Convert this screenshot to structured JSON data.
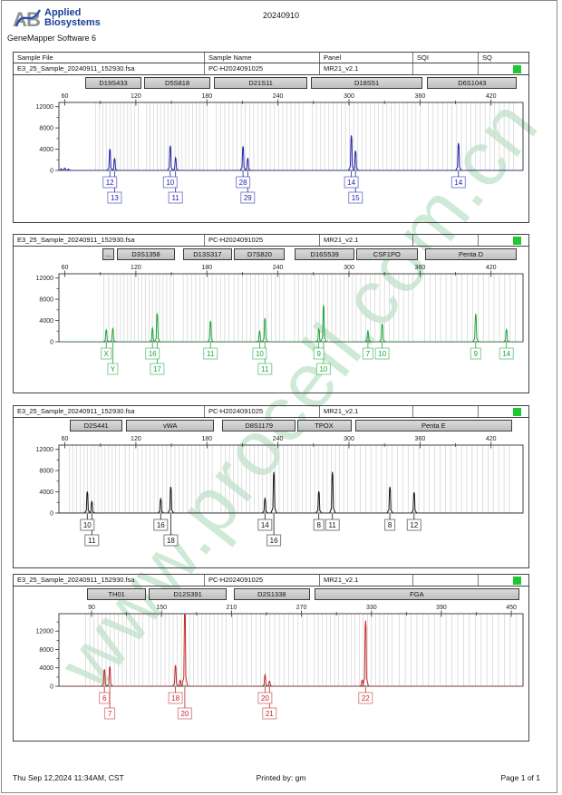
{
  "header": {
    "logo_a": "A",
    "logo_b": "B",
    "brand_line1": "Applied",
    "brand_line2": "Biosystems",
    "app_title": "GeneMapper Software 6",
    "date": "20240910"
  },
  "watermark": {
    "text": "www.procell.com.cn",
    "color": "#9ed7ae"
  },
  "table": {
    "columns": [
      "Sample File",
      "Sample Name",
      "Panel",
      "SQI",
      "SQ"
    ]
  },
  "sample": {
    "file": "E3_25_Sample_20240911_152930.fsa",
    "name": "PC-H2024091025",
    "panel": "MR21_v2.1",
    "sqi": "",
    "sq_color": "#1fc832"
  },
  "footer": {
    "timestamp": "Thu Sep 12,2024 11:34AM, CST",
    "printed_by": "Printed by: gm",
    "page": "Page 1 of 1"
  },
  "chart_data": [
    {
      "type": "electropherogram",
      "dye": "blue",
      "color": "#2323aa",
      "x_range": [
        55,
        447
      ],
      "x_ticks": [
        60,
        120,
        180,
        240,
        300,
        360,
        420
      ],
      "y_ticks": [
        0,
        4000,
        8000,
        12000
      ],
      "y_max": 12800,
      "markers": [
        {
          "name": "D19S433",
          "from": 77,
          "to": 125
        },
        {
          "name": "D5S818",
          "from": 127,
          "to": 183
        },
        {
          "name": "D21S11",
          "from": 186,
          "to": 265
        },
        {
          "name": "D18S51",
          "from": 268,
          "to": 362
        },
        {
          "name": "D6S1043",
          "from": 366,
          "to": 442
        }
      ],
      "bins": [
        [
          86,
          124,
          3
        ],
        [
          129,
          182,
          3
        ],
        [
          188,
          264,
          3.5
        ],
        [
          269,
          361,
          3.5
        ],
        [
          367,
          441,
          4
        ]
      ],
      "peaks": [
        [
          57,
          300
        ],
        [
          60,
          450
        ],
        [
          63,
          250
        ],
        [
          98,
          4050
        ],
        [
          102,
          2200
        ],
        [
          149,
          4650
        ],
        [
          153.5,
          2400
        ],
        [
          210.5,
          4550
        ],
        [
          214.5,
          2250
        ],
        [
          302,
          6600
        ],
        [
          305.5,
          3700
        ],
        [
          392.5,
          5150
        ]
      ],
      "alleles": [
        {
          "x": 98,
          "label": "12",
          "row": 1
        },
        {
          "x": 102,
          "label": "13",
          "row": 2
        },
        {
          "x": 149,
          "label": "10",
          "row": 1
        },
        {
          "x": 153.5,
          "label": "11",
          "row": 2
        },
        {
          "x": 210.5,
          "label": "28",
          "row": 1
        },
        {
          "x": 214.5,
          "label": "29",
          "row": 2
        },
        {
          "x": 302,
          "label": "14",
          "row": 1
        },
        {
          "x": 305.5,
          "label": "15",
          "row": 2
        },
        {
          "x": 392.5,
          "label": "14",
          "row": 1
        }
      ]
    },
    {
      "type": "electropherogram",
      "dye": "green",
      "color": "#1ea43c",
      "x_range": [
        55,
        447
      ],
      "x_ticks": [
        60,
        120,
        180,
        240,
        300,
        360,
        420
      ],
      "y_ticks": [
        0,
        4000,
        8000,
        12000
      ],
      "y_max": 12800,
      "markers": [
        {
          "name": "...",
          "from": 92,
          "to": 102
        },
        {
          "name": "D3S1358",
          "from": 104,
          "to": 153
        },
        {
          "name": "D13S317",
          "from": 160,
          "to": 201
        },
        {
          "name": "D7S820",
          "from": 203,
          "to": 246
        },
        {
          "name": "D16S539",
          "from": 254,
          "to": 305
        },
        {
          "name": "CSF1PO",
          "from": 306,
          "to": 358
        },
        {
          "name": "Penta D",
          "from": 364,
          "to": 442
        }
      ],
      "bins": [
        [
          93,
          101,
          4
        ],
        [
          104,
          152,
          3
        ],
        [
          160,
          200,
          3.5
        ],
        [
          203,
          245,
          3.5
        ],
        [
          254,
          304,
          3.5
        ],
        [
          306,
          357,
          4
        ],
        [
          364,
          441,
          4.5
        ]
      ],
      "peaks": [
        [
          95,
          2250
        ],
        [
          100.5,
          2450
        ],
        [
          134,
          2600
        ],
        [
          138,
          5350
        ],
        [
          183,
          3950
        ],
        [
          224.5,
          2000
        ],
        [
          229,
          4450
        ],
        [
          274.5,
          2400
        ],
        [
          278.5,
          6950
        ],
        [
          316,
          2050
        ],
        [
          328,
          3400
        ],
        [
          407,
          5250
        ],
        [
          433,
          2300
        ]
      ],
      "alleles": [
        {
          "x": 95,
          "label": "X",
          "row": 1
        },
        {
          "x": 100.5,
          "label": "Y",
          "row": 2
        },
        {
          "x": 134,
          "label": "16",
          "row": 1
        },
        {
          "x": 138,
          "label": "17",
          "row": 2
        },
        {
          "x": 183,
          "label": "11",
          "row": 1
        },
        {
          "x": 224.5,
          "label": "10",
          "row": 1
        },
        {
          "x": 229,
          "label": "11",
          "row": 2
        },
        {
          "x": 274.5,
          "label": "9",
          "row": 1
        },
        {
          "x": 278.5,
          "label": "10",
          "row": 2
        },
        {
          "x": 316,
          "label": "7",
          "row": 1
        },
        {
          "x": 328,
          "label": "10",
          "row": 1
        },
        {
          "x": 407,
          "label": "9",
          "row": 1
        },
        {
          "x": 433,
          "label": "14",
          "row": 1
        }
      ]
    },
    {
      "type": "electropherogram",
      "dye": "black",
      "color": "#161616",
      "x_range": [
        55,
        447
      ],
      "x_ticks": [
        60,
        120,
        180,
        240,
        300,
        360,
        420
      ],
      "y_ticks": [
        0,
        4000,
        8000,
        12000
      ],
      "y_max": 12800,
      "markers": [
        {
          "name": "D2S441",
          "from": 64,
          "to": 109
        },
        {
          "name": "vWA",
          "from": 112,
          "to": 186
        },
        {
          "name": "D8S1179",
          "from": 193,
          "to": 255
        },
        {
          "name": "TPOX",
          "from": 256,
          "to": 302
        },
        {
          "name": "Penta E",
          "from": 305,
          "to": 438
        }
      ],
      "bins": [
        [
          64,
          107,
          3
        ],
        [
          111,
          186,
          3.5
        ],
        [
          192,
          255,
          3.5
        ],
        [
          257,
          301,
          3.5
        ],
        [
          305,
          437,
          4.5
        ]
      ],
      "peaks": [
        [
          79,
          4050
        ],
        [
          82.8,
          2150
        ],
        [
          141,
          2700
        ],
        [
          149.5,
          4950
        ],
        [
          229,
          2750
        ],
        [
          236.5,
          7750
        ],
        [
          274.5,
          4100
        ],
        [
          286,
          7750
        ],
        [
          334.5,
          4950
        ],
        [
          355,
          3900
        ]
      ],
      "alleles": [
        {
          "x": 79,
          "label": "10",
          "row": 1
        },
        {
          "x": 82.8,
          "label": "11",
          "row": 2
        },
        {
          "x": 141,
          "label": "16",
          "row": 1
        },
        {
          "x": 149.5,
          "label": "18",
          "row": 2
        },
        {
          "x": 229,
          "label": "14",
          "row": 1
        },
        {
          "x": 236.5,
          "label": "16",
          "row": 2
        },
        {
          "x": 274.5,
          "label": "8",
          "row": 1
        },
        {
          "x": 286,
          "label": "11",
          "row": 1
        },
        {
          "x": 334.5,
          "label": "8",
          "row": 1
        },
        {
          "x": 355,
          "label": "12",
          "row": 1
        }
      ]
    },
    {
      "type": "electropherogram",
      "dye": "red",
      "color": "#c12a2a",
      "x_range": [
        62,
        460
      ],
      "x_ticks": [
        90,
        150,
        210,
        270,
        330,
        390,
        450
      ],
      "y_ticks": [
        0,
        4000,
        8000,
        12000
      ],
      "y_max": 15800,
      "markers": [
        {
          "name": "TH01",
          "from": 86,
          "to": 137
        },
        {
          "name": "D12S391",
          "from": 139,
          "to": 206
        },
        {
          "name": "D2S1338",
          "from": 212,
          "to": 277
        },
        {
          "name": "FGA",
          "from": 281,
          "to": 457
        }
      ],
      "bins": [
        [
          85,
          136,
          3.5
        ],
        [
          139,
          206,
          3.5
        ],
        [
          211,
          277,
          4
        ],
        [
          281,
          350,
          3.5
        ],
        [
          354,
          456,
          5
        ]
      ],
      "peaks": [
        [
          101,
          3700
        ],
        [
          105.6,
          4300
        ],
        [
          162,
          4600
        ],
        [
          166,
          1300
        ],
        [
          170,
          17000
        ],
        [
          238.8,
          2500
        ],
        [
          242.6,
          1100
        ],
        [
          322,
          1300
        ],
        [
          325,
          14300
        ]
      ],
      "alleles": [
        {
          "x": 101,
          "label": "6",
          "row": 1
        },
        {
          "x": 105.6,
          "label": "7",
          "row": 2
        },
        {
          "x": 162,
          "label": "18",
          "row": 1
        },
        {
          "x": 170,
          "label": "20",
          "row": 2
        },
        {
          "x": 238.8,
          "label": "20",
          "row": 1
        },
        {
          "x": 242.6,
          "label": "21",
          "row": 2
        },
        {
          "x": 325,
          "label": "22",
          "row": 1
        }
      ]
    }
  ]
}
